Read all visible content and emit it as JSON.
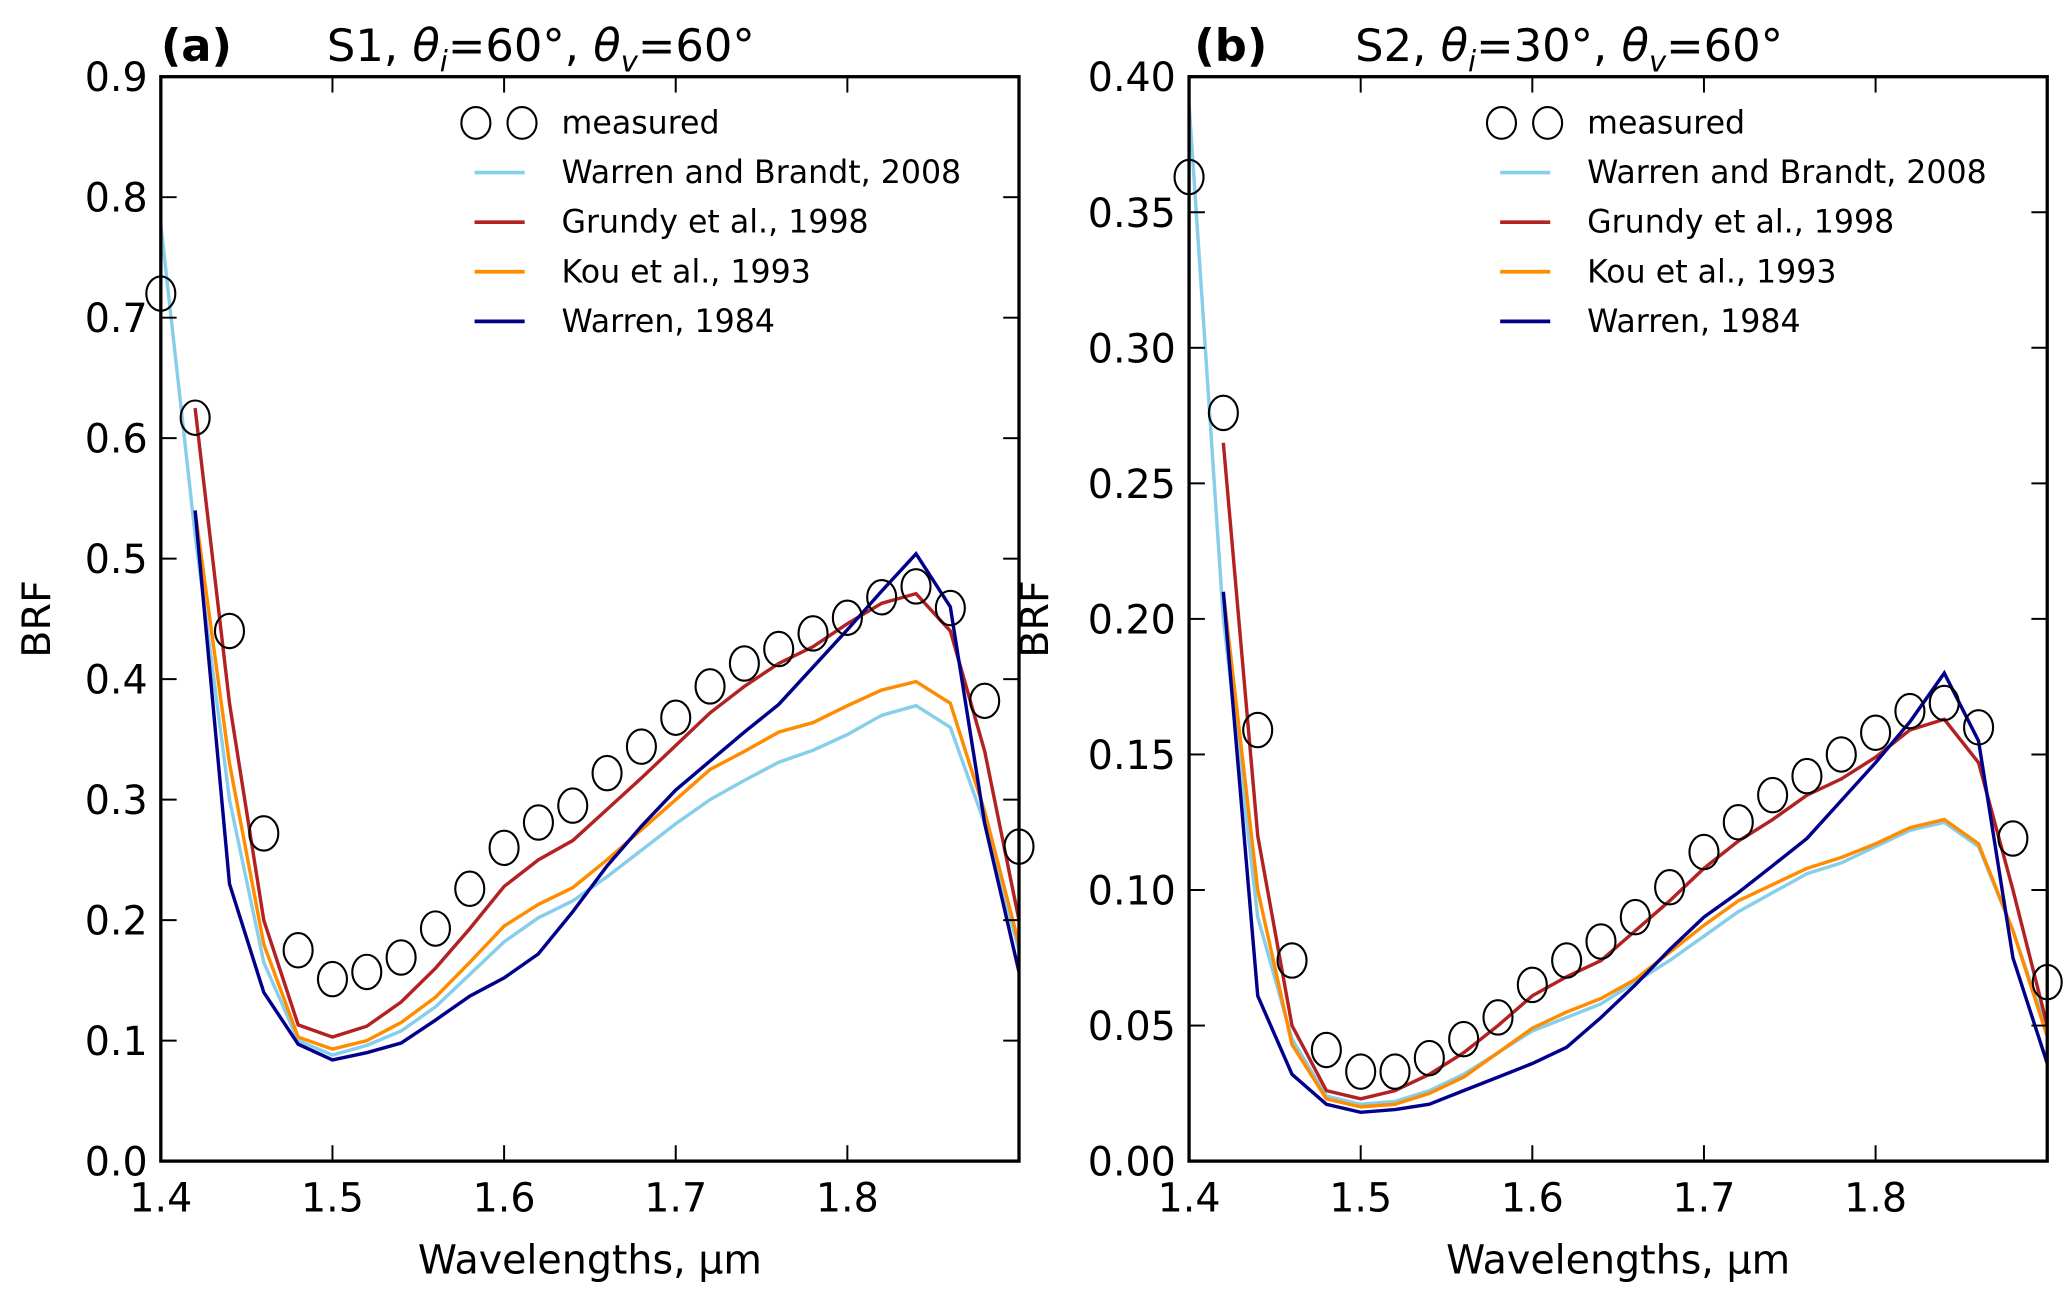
{
  "chart_data": [
    {
      "type": "line",
      "panel": "(a)",
      "title": "S1, θi=60°, θv=60°",
      "title_parts": {
        "prefix": "S1, ",
        "theta_i_sub": "i",
        "theta_i_val": "=60°",
        "theta_v_sub": "v",
        "theta_v_val": "=60°"
      },
      "xlabel": "Wavelengths, μm",
      "ylabel": "BRF",
      "xlim": [
        1.4,
        1.9
      ],
      "ylim": [
        0.0,
        0.9
      ],
      "xticks": [
        "1.4",
        "1.5",
        "1.6",
        "1.7",
        "1.8"
      ],
      "xtick_values": [
        1.4,
        1.5,
        1.6,
        1.7,
        1.8
      ],
      "yticks": [
        "0.0",
        "0.1",
        "0.2",
        "0.3",
        "0.4",
        "0.5",
        "0.6",
        "0.7",
        "0.8",
        "0.9"
      ],
      "ytick_values": [
        0.0,
        0.1,
        0.2,
        0.3,
        0.4,
        0.5,
        0.6,
        0.7,
        0.8,
        0.9
      ],
      "grid": false,
      "legend_position": "top-right",
      "x": [
        1.4,
        1.42,
        1.44,
        1.46,
        1.48,
        1.5,
        1.52,
        1.54,
        1.56,
        1.58,
        1.6,
        1.62,
        1.64,
        1.66,
        1.68,
        1.7,
        1.72,
        1.74,
        1.76,
        1.78,
        1.8,
        1.82,
        1.84,
        1.86,
        1.88,
        1.9
      ],
      "measured": {
        "name": "measured",
        "values": [
          0.72,
          0.617,
          0.44,
          0.272,
          0.175,
          0.151,
          0.157,
          0.169,
          0.193,
          0.226,
          0.26,
          0.281,
          0.295,
          0.322,
          0.344,
          0.368,
          0.394,
          0.413,
          0.425,
          0.438,
          0.451,
          0.468,
          0.477,
          0.459,
          0.382,
          0.261
        ]
      },
      "series": [
        {
          "name": "Warren and Brandt, 2008",
          "color": "#87ceeb",
          "values": [
            0.777,
            0.52,
            0.3,
            0.165,
            0.1,
            0.088,
            0.096,
            0.108,
            0.128,
            0.155,
            0.182,
            0.202,
            0.216,
            0.236,
            0.258,
            0.28,
            0.3,
            0.316,
            0.331,
            0.341,
            0.354,
            0.37,
            0.378,
            0.36,
            0.28,
            0.175
          ]
        },
        {
          "name": "Grundy et al., 1998",
          "color": "#b22222",
          "values": [
            null,
            0.625,
            0.38,
            0.2,
            0.113,
            0.103,
            0.112,
            0.132,
            0.16,
            0.193,
            0.228,
            0.25,
            0.266,
            0.292,
            0.318,
            0.345,
            0.372,
            0.394,
            0.413,
            0.427,
            0.446,
            0.463,
            0.471,
            0.44,
            0.34,
            0.2
          ]
        },
        {
          "name": "Kou et al., 1993",
          "color": "#ff8c00",
          "values": [
            null,
            0.54,
            0.33,
            0.18,
            0.103,
            0.093,
            0.1,
            0.115,
            0.136,
            0.165,
            0.195,
            0.213,
            0.227,
            0.25,
            0.275,
            0.3,
            0.325,
            0.34,
            0.356,
            0.364,
            0.378,
            0.391,
            0.398,
            0.38,
            0.29,
            0.18
          ]
        },
        {
          "name": "Warren, 1984",
          "color": "#00008b",
          "values": [
            null,
            0.54,
            0.23,
            0.14,
            0.097,
            0.084,
            0.09,
            0.098,
            0.117,
            0.137,
            0.152,
            0.172,
            0.207,
            0.245,
            0.278,
            0.308,
            0.332,
            0.356,
            0.379,
            0.41,
            0.441,
            0.473,
            0.504,
            0.46,
            0.28,
            0.157
          ]
        }
      ]
    },
    {
      "type": "line",
      "panel": "(b)",
      "title": "S2, θi=30°, θv=60°",
      "title_parts": {
        "prefix": "S2, ",
        "theta_i_sub": "i",
        "theta_i_val": "=30°",
        "theta_v_sub": "v",
        "theta_v_val": "=60°"
      },
      "xlabel": "Wavelengths, μm",
      "ylabel": "BRF",
      "xlim": [
        1.4,
        1.9
      ],
      "ylim": [
        0.0,
        0.4
      ],
      "xticks": [
        "1.4",
        "1.5",
        "1.6",
        "1.7",
        "1.8"
      ],
      "xtick_values": [
        1.4,
        1.5,
        1.6,
        1.7,
        1.8
      ],
      "yticks": [
        "0.00",
        "0.05",
        "0.10",
        "0.15",
        "0.20",
        "0.25",
        "0.30",
        "0.35",
        "0.40"
      ],
      "ytick_values": [
        0.0,
        0.05,
        0.1,
        0.15,
        0.2,
        0.25,
        0.3,
        0.35,
        0.4
      ],
      "grid": false,
      "legend_position": "top-right",
      "x": [
        1.4,
        1.42,
        1.44,
        1.46,
        1.48,
        1.5,
        1.52,
        1.54,
        1.56,
        1.58,
        1.6,
        1.62,
        1.64,
        1.66,
        1.68,
        1.7,
        1.72,
        1.74,
        1.76,
        1.78,
        1.8,
        1.82,
        1.84,
        1.86,
        1.88,
        1.9
      ],
      "measured": {
        "name": "measured",
        "values": [
          0.363,
          0.276,
          0.159,
          0.074,
          0.041,
          0.033,
          0.033,
          0.038,
          0.045,
          0.053,
          0.065,
          0.074,
          0.081,
          0.09,
          0.101,
          0.114,
          0.125,
          0.135,
          0.142,
          0.15,
          0.158,
          0.166,
          0.169,
          0.16,
          0.119,
          0.066
        ]
      },
      "series": [
        {
          "name": "Warren and Brandt, 2008",
          "color": "#87ceeb",
          "values": [
            0.39,
            0.2,
            0.09,
            0.045,
            0.024,
            0.021,
            0.022,
            0.026,
            0.032,
            0.04,
            0.048,
            0.053,
            0.058,
            0.066,
            0.074,
            0.083,
            0.092,
            0.099,
            0.106,
            0.11,
            0.116,
            0.122,
            0.125,
            0.116,
            0.085,
            0.048
          ]
        },
        {
          "name": "Grundy et al., 1998",
          "color": "#b22222",
          "values": [
            null,
            0.265,
            0.12,
            0.05,
            0.026,
            0.023,
            0.026,
            0.032,
            0.04,
            0.05,
            0.061,
            0.068,
            0.074,
            0.085,
            0.096,
            0.108,
            0.118,
            0.126,
            0.135,
            0.141,
            0.149,
            0.159,
            0.163,
            0.147,
            0.1,
            0.05
          ]
        },
        {
          "name": "Kou et al., 1993",
          "color": "#ff8c00",
          "values": [
            null,
            0.21,
            0.1,
            0.043,
            0.023,
            0.02,
            0.021,
            0.025,
            0.031,
            0.04,
            0.049,
            0.055,
            0.06,
            0.067,
            0.077,
            0.087,
            0.096,
            0.102,
            0.108,
            0.112,
            0.117,
            0.123,
            0.126,
            0.117,
            0.085,
            0.046
          ]
        },
        {
          "name": "Warren, 1984",
          "color": "#00008b",
          "values": [
            null,
            0.21,
            0.061,
            0.032,
            0.021,
            0.018,
            0.019,
            0.021,
            0.026,
            0.031,
            0.036,
            0.042,
            0.053,
            0.065,
            0.078,
            0.09,
            0.099,
            0.109,
            0.119,
            0.133,
            0.147,
            0.162,
            0.18,
            0.155,
            0.075,
            0.036
          ]
        }
      ]
    }
  ]
}
